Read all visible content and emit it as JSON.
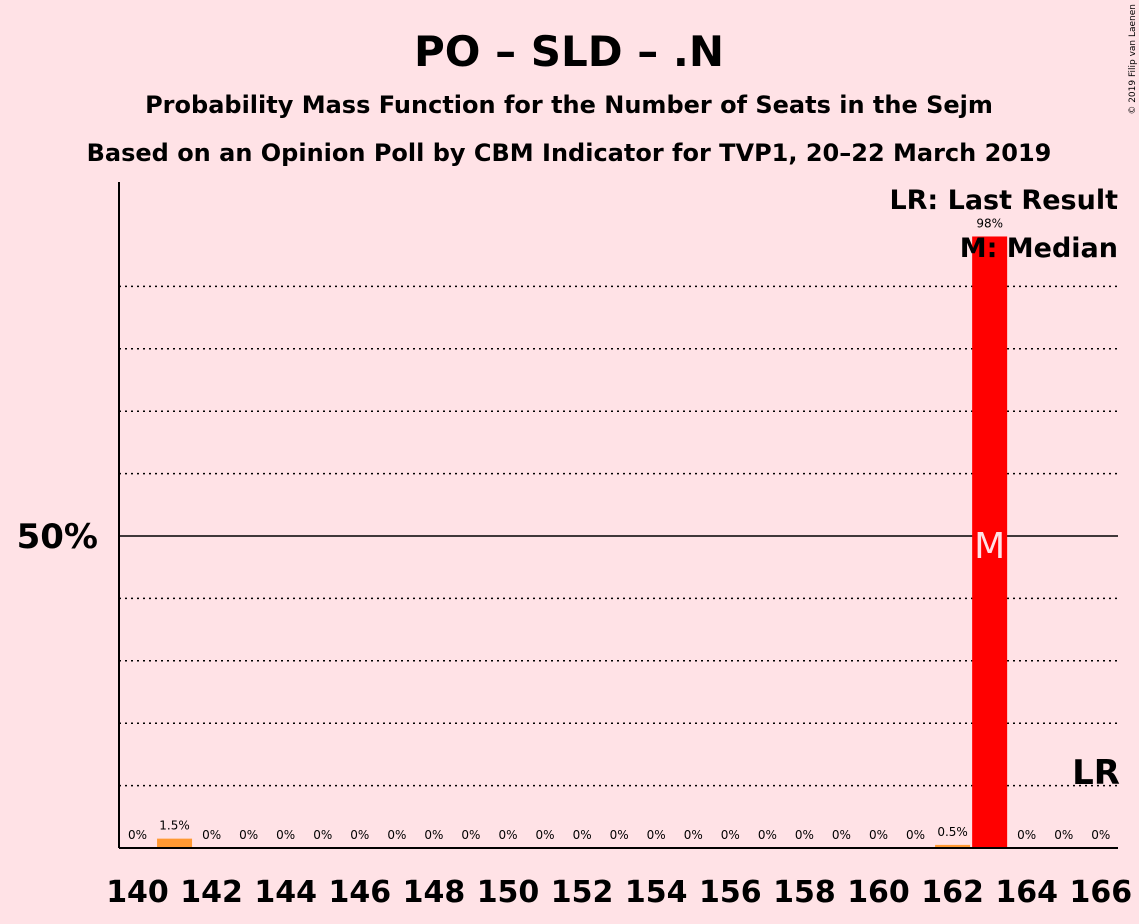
{
  "chart_data": {
    "type": "bar",
    "title": "PO – SLD – .N",
    "subtitle_1": "Probability Mass Function for the Number of Seats in the Sejm",
    "subtitle_2": "Based on an Opinion Poll by CBM Indicator for TVP1, 20–22 March 2019",
    "copyright": "© 2019 Filip van Laenen",
    "legend": {
      "last_result": "LR: Last Result",
      "median": "M: Median"
    },
    "x": [
      140,
      141,
      142,
      143,
      144,
      145,
      146,
      147,
      148,
      149,
      150,
      151,
      152,
      153,
      154,
      155,
      156,
      157,
      158,
      159,
      160,
      161,
      162,
      163,
      164,
      165,
      166
    ],
    "values": [
      0,
      1.5,
      0,
      0,
      0,
      0,
      0,
      0,
      0,
      0,
      0,
      0,
      0,
      0,
      0,
      0,
      0,
      0,
      0,
      0,
      0,
      0,
      0.5,
      98,
      0,
      0,
      0
    ],
    "bar_labels": [
      "0%",
      "1.5%",
      "0%",
      "0%",
      "0%",
      "0%",
      "0%",
      "0%",
      "0%",
      "0%",
      "0%",
      "0%",
      "0%",
      "0%",
      "0%",
      "0%",
      "0%",
      "0%",
      "0%",
      "0%",
      "0%",
      "0%",
      "0.5%",
      "98%",
      "0%",
      "0%",
      "0%"
    ],
    "x_ticks": [
      140,
      142,
      144,
      146,
      148,
      150,
      152,
      154,
      156,
      158,
      160,
      162,
      164,
      166
    ],
    "ylim": [
      0,
      107
    ],
    "y_tick_label": "50%",
    "y_tick_value": 50,
    "median_seat": 163,
    "median_marker": "M",
    "last_result_seat": 166,
    "last_result_marker": "LR",
    "colors": {
      "main": "#FF0000",
      "minor": "#FF9933",
      "background": "#FFE2E6"
    }
  }
}
